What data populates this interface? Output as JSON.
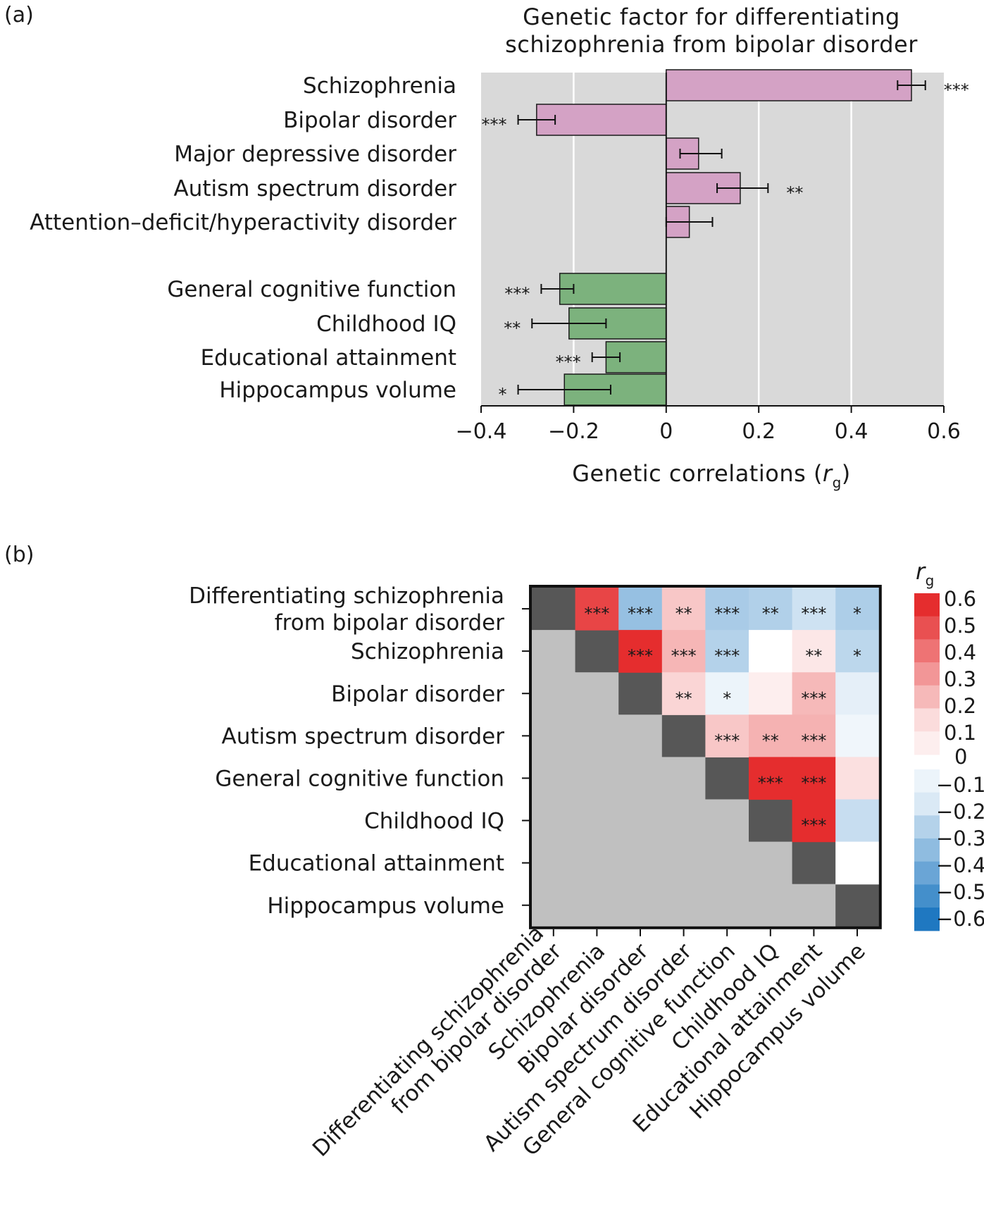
{
  "panel_a": {
    "label": "(a)",
    "title_lines": [
      "Genetic factor for differentiating",
      "schizophrenia from bipolar disorder"
    ],
    "xlabel": "Genetic correlations (",
    "xlabel_var": "r",
    "xlabel_sub": "g",
    "xlabel_close": ")"
  },
  "panel_b": {
    "label": "(b)",
    "row_labels": [
      [
        "Differentiating schizophrenia",
        "from bipolar disorder"
      ],
      [
        "Schizophrenia"
      ],
      [
        "Bipolar disorder"
      ],
      [
        "Autism spectrum disorder"
      ],
      [
        "General cognitive function"
      ],
      [
        "Childhood IQ"
      ],
      [
        "Educational attainment"
      ],
      [
        "Hippocampus volume"
      ]
    ],
    "col_labels": [
      [
        "Differentiating schizophrenia",
        "from bipolar disorder"
      ],
      [
        "Schizophrenia"
      ],
      [
        "Bipolar disorder"
      ],
      [
        "Autism spectrum disorder"
      ],
      [
        "General cognitive function"
      ],
      [
        "Childhood IQ"
      ],
      [
        "Educational attainment"
      ],
      [
        "Hippocampus volume"
      ]
    ],
    "colorbar": {
      "title_var": "r",
      "title_sub": "g",
      "pos_ticks": [
        "0.6",
        "0.5",
        "0.4",
        "0.3",
        "0.2",
        "0.1"
      ],
      "zero_tick": "0",
      "neg_ticks": [
        "−0.1",
        "−0.2",
        "−0.3",
        "−0.4",
        "−0.5",
        "−0.6"
      ]
    }
  },
  "colors": {
    "panel_bg": "#d9d9d9",
    "psych_bar": "#d4a2c5",
    "cog_bar": "#7cb27d",
    "diag": "#575757",
    "lower": "#c0c0c0",
    "pos_max": "#e52d2e",
    "neg_max": "#1f78c1"
  },
  "chart_data": [
    {
      "type": "bar",
      "orientation": "horizontal",
      "title": "Genetic factor for differentiating schizophrenia from bipolar disorder",
      "xlabel": "Genetic correlations (rg)",
      "xlim": [
        -0.4,
        0.6
      ],
      "xticks": [
        -0.4,
        -0.2,
        0,
        0.2,
        0.4,
        0.6
      ],
      "xtick_labels": [
        "−0.4",
        "−0.2",
        "0",
        "0.2",
        "0.4",
        "0.6"
      ],
      "grid": true,
      "categories": [
        "Schizophrenia",
        "Bipolar disorder",
        "Major depressive disorder",
        "Autism spectrum disorder",
        "Attention–deficit/hyperactivity disorder",
        "General cognitive function",
        "Childhood IQ",
        "Educational attainment",
        "Hippocampus volume"
      ],
      "group": [
        "psychiatric",
        "psychiatric",
        "psychiatric",
        "psychiatric",
        "psychiatric",
        "cognitive",
        "cognitive",
        "cognitive",
        "cognitive"
      ],
      "values": [
        0.53,
        -0.28,
        0.07,
        0.16,
        0.05,
        -0.23,
        -0.21,
        -0.13,
        -0.22
      ],
      "ci_low": [
        0.5,
        -0.32,
        0.03,
        0.11,
        0.0,
        -0.27,
        -0.29,
        -0.16,
        -0.32
      ],
      "ci_high": [
        0.56,
        -0.24,
        0.12,
        0.22,
        0.1,
        -0.2,
        -0.13,
        -0.1,
        -0.12
      ],
      "significance": [
        "***",
        "***",
        "",
        "**",
        "",
        "***",
        "**",
        "***",
        "*"
      ]
    },
    {
      "type": "heatmap",
      "title": "",
      "legend_title": "rg",
      "color_range": [
        -0.6,
        0.6
      ],
      "labels": [
        "Differentiating schizophrenia from bipolar disorder",
        "Schizophrenia",
        "Bipolar disorder",
        "Autism spectrum disorder",
        "General cognitive function",
        "Childhood IQ",
        "Educational attainment",
        "Hippocampus volume"
      ],
      "upper_triangle": [
        {
          "row": 0,
          "col": 1,
          "rg": 0.53,
          "sig": "***"
        },
        {
          "row": 0,
          "col": 2,
          "rg": -0.28,
          "sig": "***"
        },
        {
          "row": 0,
          "col": 3,
          "rg": 0.16,
          "sig": "**"
        },
        {
          "row": 0,
          "col": 4,
          "rg": -0.23,
          "sig": "***"
        },
        {
          "row": 0,
          "col": 5,
          "rg": -0.21,
          "sig": "**"
        },
        {
          "row": 0,
          "col": 6,
          "rg": -0.13,
          "sig": "***"
        },
        {
          "row": 0,
          "col": 7,
          "rg": -0.22,
          "sig": "*"
        },
        {
          "row": 1,
          "col": 2,
          "rg": 0.68,
          "sig": "***"
        },
        {
          "row": 1,
          "col": 3,
          "rg": 0.21,
          "sig": "***"
        },
        {
          "row": 1,
          "col": 4,
          "rg": -0.2,
          "sig": "***"
        },
        {
          "row": 1,
          "col": 5,
          "rg": 0.0,
          "sig": ""
        },
        {
          "row": 1,
          "col": 6,
          "rg": 0.07,
          "sig": "**"
        },
        {
          "row": 1,
          "col": 7,
          "rg": -0.18,
          "sig": "*"
        },
        {
          "row": 2,
          "col": 3,
          "rg": 0.12,
          "sig": "**"
        },
        {
          "row": 2,
          "col": 4,
          "rg": -0.05,
          "sig": "*"
        },
        {
          "row": 2,
          "col": 5,
          "rg": 0.05,
          "sig": ""
        },
        {
          "row": 2,
          "col": 6,
          "rg": 0.2,
          "sig": "***"
        },
        {
          "row": 2,
          "col": 7,
          "rg": -0.07,
          "sig": ""
        },
        {
          "row": 3,
          "col": 4,
          "rg": 0.16,
          "sig": "***"
        },
        {
          "row": 3,
          "col": 5,
          "rg": 0.22,
          "sig": "**"
        },
        {
          "row": 3,
          "col": 6,
          "rg": 0.22,
          "sig": "***"
        },
        {
          "row": 3,
          "col": 7,
          "rg": -0.04,
          "sig": ""
        },
        {
          "row": 4,
          "col": 5,
          "rg": 0.7,
          "sig": "***"
        },
        {
          "row": 4,
          "col": 6,
          "rg": 0.7,
          "sig": "***"
        },
        {
          "row": 4,
          "col": 7,
          "rg": 0.09,
          "sig": ""
        },
        {
          "row": 5,
          "col": 6,
          "rg": 0.7,
          "sig": "***"
        },
        {
          "row": 5,
          "col": 7,
          "rg": -0.15,
          "sig": ""
        },
        {
          "row": 6,
          "col": 7,
          "rg": 0.0,
          "sig": ""
        }
      ]
    }
  ]
}
